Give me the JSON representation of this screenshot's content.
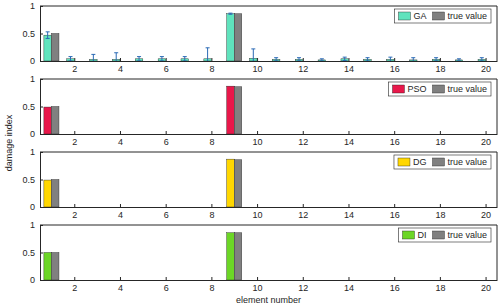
{
  "chart_data": [
    {
      "type": "bar",
      "ylabel": "damage index",
      "legend": "upper right",
      "x": [
        1,
        2,
        3,
        4,
        5,
        6,
        7,
        8,
        9,
        10,
        11,
        12,
        13,
        14,
        15,
        16,
        17,
        18,
        19,
        20
      ],
      "xlim": [
        0.5,
        20.5
      ],
      "xticks": [
        2,
        4,
        6,
        8,
        10,
        12,
        14,
        16,
        18,
        20
      ],
      "ylim": [
        0,
        1
      ],
      "yticks": [
        0,
        0.5,
        1
      ],
      "series": [
        {
          "name": "GA",
          "color": "#5fe3bd",
          "values": [
            0.47,
            0.04,
            0.03,
            0.03,
            0.04,
            0.04,
            0.04,
            0.04,
            0.86,
            0.05,
            0.03,
            0.03,
            0.02,
            0.04,
            0.03,
            0.03,
            0.02,
            0.03,
            0.02,
            0.03
          ],
          "error": [
            0.06,
            0.04,
            0.09,
            0.12,
            0.04,
            0.04,
            0.04,
            0.2,
            0.01,
            0.17,
            0.03,
            0.03,
            0.02,
            0.03,
            0.03,
            0.04,
            0.04,
            0.03,
            0.02,
            0.03
          ]
        },
        {
          "name": "true value",
          "color": "#808080",
          "values": [
            0.5,
            0,
            0,
            0,
            0,
            0,
            0,
            0,
            0.86,
            0,
            0,
            0,
            0,
            0,
            0,
            0,
            0,
            0,
            0,
            0
          ]
        }
      ]
    },
    {
      "type": "bar",
      "legend": "upper right",
      "x": [
        1,
        2,
        3,
        4,
        5,
        6,
        7,
        8,
        9,
        10,
        11,
        12,
        13,
        14,
        15,
        16,
        17,
        18,
        19,
        20
      ],
      "xlim": [
        0.5,
        20.5
      ],
      "xticks": [
        2,
        4,
        6,
        8,
        10,
        12,
        14,
        16,
        18,
        20
      ],
      "ylim": [
        0,
        1
      ],
      "yticks": [
        0,
        0.5,
        1
      ],
      "series": [
        {
          "name": "PSO",
          "color": "#e8174a",
          "values": [
            0.49,
            0,
            0,
            0,
            0,
            0,
            0,
            0,
            0.87,
            0,
            0,
            0,
            0,
            0,
            0,
            0,
            0,
            0,
            0,
            0
          ]
        },
        {
          "name": "true value",
          "color": "#808080",
          "values": [
            0.5,
            0,
            0,
            0,
            0,
            0,
            0,
            0,
            0.86,
            0,
            0,
            0,
            0,
            0,
            0,
            0,
            0,
            0,
            0,
            0
          ]
        }
      ]
    },
    {
      "type": "bar",
      "legend": "upper right",
      "x": [
        1,
        2,
        3,
        4,
        5,
        6,
        7,
        8,
        9,
        10,
        11,
        12,
        13,
        14,
        15,
        16,
        17,
        18,
        19,
        20
      ],
      "xlim": [
        0.5,
        20.5
      ],
      "xticks": [
        2,
        4,
        6,
        8,
        10,
        12,
        14,
        16,
        18,
        20
      ],
      "ylim": [
        0,
        1
      ],
      "yticks": [
        0,
        0.5,
        1
      ],
      "series": [
        {
          "name": "DG",
          "color": "#ffd700",
          "values": [
            0.49,
            0,
            0,
            0,
            0,
            0,
            0,
            0,
            0.87,
            0,
            0,
            0,
            0,
            0,
            0,
            0,
            0,
            0,
            0,
            0
          ]
        },
        {
          "name": "true value",
          "color": "#808080",
          "values": [
            0.5,
            0,
            0,
            0,
            0,
            0,
            0,
            0,
            0.86,
            0,
            0,
            0,
            0,
            0,
            0,
            0,
            0,
            0,
            0,
            0
          ]
        }
      ]
    },
    {
      "type": "bar",
      "xlabel": "element number",
      "legend": "upper right",
      "x": [
        1,
        2,
        3,
        4,
        5,
        6,
        7,
        8,
        9,
        10,
        11,
        12,
        13,
        14,
        15,
        16,
        17,
        18,
        19,
        20
      ],
      "xlim": [
        0.5,
        20.5
      ],
      "xticks": [
        2,
        4,
        6,
        8,
        10,
        12,
        14,
        16,
        18,
        20
      ],
      "ylim": [
        0,
        1
      ],
      "yticks": [
        0,
        0.5,
        1
      ],
      "series": [
        {
          "name": "DI",
          "color": "#6cd626",
          "values": [
            0.5,
            0,
            0,
            0,
            0,
            0,
            0,
            0,
            0.86,
            0,
            0,
            0,
            0,
            0,
            0,
            0,
            0,
            0,
            0,
            0
          ]
        },
        {
          "name": "true value",
          "color": "#808080",
          "values": [
            0.5,
            0,
            0,
            0,
            0,
            0,
            0,
            0,
            0.86,
            0,
            0,
            0,
            0,
            0,
            0,
            0,
            0,
            0,
            0,
            0
          ]
        }
      ]
    }
  ]
}
